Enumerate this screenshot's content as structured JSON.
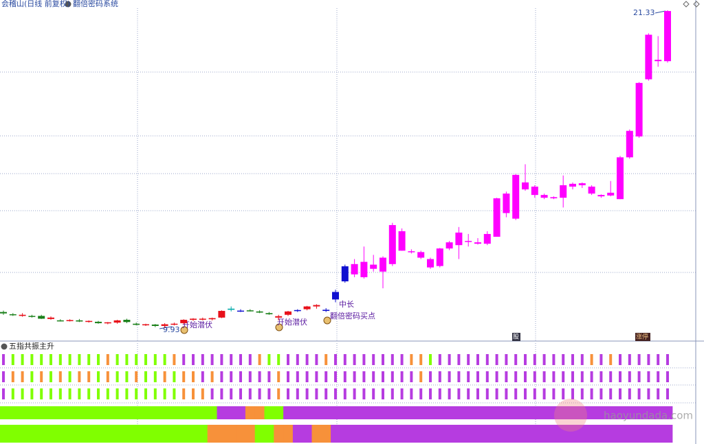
{
  "header": {
    "title": "会稽山(日线 前复权)",
    "indicator": "翻倍密码系统"
  },
  "chart_data": {
    "type": "candlestick",
    "ylim": [
      9.63,
      21.4
    ],
    "open": [
      10.5,
      10.42,
      10.4,
      10.36,
      10.36,
      10.25,
      10.2,
      10.2,
      10.2,
      10.16,
      10.15,
      10.1,
      10.12,
      10.22,
      10.08,
      10.04,
      10.05,
      10.0,
      10.06,
      10.1,
      10.22,
      10.26,
      10.24,
      10.3,
      10.58,
      10.55,
      10.56,
      10.52,
      10.46,
      10.3,
      10.4,
      10.54,
      10.6,
      10.7,
      10.58,
      10.95,
      11.6,
      11.85,
      11.75,
      12.05,
      11.95,
      12.22,
      13.4,
      12.68,
      12.65,
      12.4,
      12.15,
      12.78,
      12.9,
      13.05,
      13.0,
      12.95,
      13.2,
      14.05,
      13.85,
      15.15,
      15.0,
      14.7,
      14.62,
      14.6,
      15.0,
      15.05,
      15.0,
      14.7,
      14.68,
      14.55,
      16.05,
      16.8,
      18.85,
      19.55,
      19.5
    ],
    "high": [
      10.55,
      10.46,
      10.46,
      10.4,
      10.4,
      10.34,
      10.24,
      10.24,
      10.25,
      10.2,
      10.18,
      10.14,
      10.22,
      10.26,
      10.12,
      10.08,
      10.07,
      10.1,
      10.12,
      10.24,
      10.28,
      10.3,
      10.3,
      10.56,
      10.7,
      10.6,
      10.6,
      10.56,
      10.5,
      10.4,
      10.54,
      10.6,
      10.72,
      10.78,
      10.64,
      11.3,
      12.2,
      12.4,
      12.85,
      12.55,
      12.5,
      13.7,
      13.5,
      12.75,
      12.7,
      12.45,
      12.8,
      13.05,
      13.55,
      13.3,
      13.15,
      13.4,
      14.6,
      14.82,
      15.45,
      15.8,
      15.05,
      14.75,
      14.65,
      15.4,
      15.15,
      15.15,
      15.05,
      14.72,
      15.2,
      16.1,
      17.05,
      18.75,
      20.5,
      20.4,
      21.33
    ],
    "low": [
      10.4,
      10.36,
      10.33,
      10.3,
      10.25,
      10.22,
      10.16,
      10.16,
      10.14,
      10.12,
      10.08,
      10.06,
      10.08,
      10.1,
      10.02,
      10.0,
      9.96,
      9.93,
      10.02,
      10.06,
      10.18,
      10.2,
      10.2,
      10.28,
      10.52,
      10.5,
      10.52,
      10.46,
      10.4,
      10.2,
      10.36,
      10.5,
      10.56,
      10.62,
      10.5,
      10.85,
      11.55,
      11.75,
      11.7,
      11.95,
      11.35,
      12.15,
      12.7,
      12.6,
      12.4,
      12.05,
      12.1,
      12.72,
      12.4,
      12.85,
      12.92,
      12.9,
      13.2,
      13.9,
      13.8,
      14.85,
      14.6,
      14.55,
      14.55,
      14.25,
      14.9,
      14.95,
      14.7,
      14.6,
      14.65,
      14.55,
      16.0,
      16.75,
      18.8,
      19.3,
      19.45
    ],
    "close": [
      10.45,
      10.4,
      10.36,
      10.34,
      10.26,
      10.3,
      10.18,
      10.21,
      10.16,
      10.18,
      10.1,
      10.13,
      10.2,
      10.14,
      10.04,
      10.06,
      10.0,
      10.06,
      10.08,
      10.22,
      10.26,
      10.25,
      10.28,
      10.54,
      10.62,
      10.54,
      10.55,
      10.48,
      10.42,
      10.35,
      10.52,
      10.57,
      10.7,
      10.75,
      10.54,
      11.22,
      12.14,
      12.22,
      12.3,
      12.2,
      12.45,
      13.62,
      12.7,
      12.65,
      12.45,
      12.1,
      12.78,
      13.0,
      13.35,
      13.02,
      12.95,
      13.3,
      14.58,
      14.75,
      15.42,
      14.9,
      14.7,
      14.6,
      14.58,
      15.05,
      15.1,
      15.12,
      14.75,
      14.65,
      14.78,
      16.05,
      17.0,
      18.72,
      20.45,
      19.5,
      21.3
    ],
    "colors": [
      "#1a801a",
      "#1a801a",
      "#e8101a",
      "#1a801a",
      "#1a801a",
      "#e8101a",
      "#1a801a",
      "#e8101a",
      "#1a801a",
      "#e8101a",
      "#1a801a",
      "#e8101a",
      "#e8101a",
      "#1a801a",
      "#1a801a",
      "#e8101a",
      "#1a801a",
      "#e8101a",
      "#e8101a",
      "#e8101a",
      "#e8101a",
      "#e8101a",
      "#e8101a",
      "#e8101a",
      "#00aaaa",
      "#1010d0",
      "#1a801a",
      "#1a801a",
      "#1a801a",
      "#e8101a",
      "#e8101a",
      "#1010d0",
      "#e8101a",
      "#e8101a",
      "#1010d0",
      "#1010d0",
      "#1010d0",
      "#ff00ff",
      "#ff00ff",
      "#ff00ff",
      "#ff00ff",
      "#ff00ff",
      "#ff00ff",
      "#ff00ff",
      "#ff00ff",
      "#ff00ff",
      "#ff00ff",
      "#ff00ff",
      "#ff00ff",
      "#ff00ff",
      "#ff00ff",
      "#ff00ff",
      "#ff00ff",
      "#ff00ff",
      "#ff00ff",
      "#ff00ff",
      "#ff00ff",
      "#ff00ff",
      "#ff00ff",
      "#ff00ff",
      "#ff00ff",
      "#ff00ff",
      "#ff00ff",
      "#ff00ff",
      "#ff00ff",
      "#ff00ff",
      "#ff00ff",
      "#ff00ff",
      "#ff00ff",
      "#ff00ff",
      "#ff00ff"
    ],
    "annotations": [
      "9.93",
      "21.33",
      "开始潜伏",
      "开始潜伏",
      "中长",
      "翻倍密码买点"
    ],
    "tags": [
      "股",
      "涨停"
    ]
  },
  "panel": {
    "title": "五指共振主升",
    "bar_rows": [
      [
        "#b63ce0",
        "#80ff00",
        "#80ff00",
        "#80ff00",
        "#80ff00",
        "#80ff00",
        "#80ff00",
        "#80ff00",
        "#80ff00",
        "#80ff00",
        "#80ff00",
        "#f7913a",
        "#80ff00",
        "#80ff00",
        "#80ff00",
        "#80ff00",
        "#80ff00",
        "#80ff00",
        "#f7913a",
        "#b63ce0",
        "#b63ce0",
        "#b63ce0",
        "#b63ce0",
        "#b63ce0",
        "#b63ce0",
        "#b63ce0",
        "#b63ce0",
        "#f7913a",
        "#80ff00",
        "#80ff00",
        "#b63ce0",
        "#b63ce0",
        "#b63ce0",
        "#b63ce0",
        "#f7913a",
        "#b63ce0",
        "#b63ce0",
        "#b63ce0",
        "#b63ce0",
        "#b63ce0",
        "#b63ce0",
        "#b63ce0",
        "#b63ce0",
        "#f7913a",
        "#f7913a",
        "#80ff00",
        "#b63ce0",
        "#b63ce0",
        "#b63ce0",
        "#b63ce0",
        "#b63ce0",
        "#b63ce0",
        "#b63ce0",
        "#b63ce0",
        "#b63ce0",
        "#b63ce0",
        "#b63ce0",
        "#b63ce0",
        "#b63ce0",
        "#b63ce0",
        "#b63ce0",
        "#b63ce0",
        "#f7913a",
        "#b63ce0",
        "#f7913a",
        "#b63ce0",
        "#b63ce0",
        "#b63ce0",
        "#b63ce0",
        "#b63ce0",
        "#b63ce0"
      ],
      [
        "#b63ce0",
        "#f7913a",
        "#f7913a",
        "#80ff00",
        "#f7913a",
        "#80ff00",
        "#f7913a",
        "#80ff00",
        "#f7913a",
        "#f7913a",
        "#80ff00",
        "#f7913a",
        "#80ff00",
        "#80ff00",
        "#f7913a",
        "#80ff00",
        "#80ff00",
        "#f7913a",
        "#80ff00",
        "#f7913a",
        "#f7913a",
        "#b63ce0",
        "#f7913a",
        "#b63ce0",
        "#b63ce0",
        "#b63ce0",
        "#b63ce0",
        "#b63ce0",
        "#b63ce0",
        "#f7913a",
        "#b63ce0",
        "#b63ce0",
        "#b63ce0",
        "#b63ce0",
        "#b63ce0",
        "#b63ce0",
        "#b63ce0",
        "#b63ce0",
        "#b63ce0",
        "#b63ce0",
        "#b63ce0",
        "#b63ce0",
        "#b63ce0",
        "#b63ce0",
        "#f7913a",
        "#b63ce0",
        "#b63ce0",
        "#b63ce0",
        "#b63ce0",
        "#b63ce0",
        "#b63ce0",
        "#b63ce0",
        "#b63ce0",
        "#b63ce0",
        "#b63ce0",
        "#b63ce0",
        "#b63ce0",
        "#b63ce0",
        "#b63ce0",
        "#b63ce0",
        "#b63ce0",
        "#b63ce0",
        "#b63ce0",
        "#b63ce0",
        "#b63ce0",
        "#b63ce0",
        "#b63ce0",
        "#b63ce0",
        "#b63ce0",
        "#b63ce0",
        "#b63ce0"
      ],
      [
        "#b63ce0",
        "#80ff00",
        "#80ff00",
        "#80ff00",
        "#80ff00",
        "#80ff00",
        "#80ff00",
        "#80ff00",
        "#80ff00",
        "#80ff00",
        "#80ff00",
        "#80ff00",
        "#80ff00",
        "#80ff00",
        "#80ff00",
        "#80ff00",
        "#80ff00",
        "#80ff00",
        "#80ff00",
        "#f7913a",
        "#f7913a",
        "#f7913a",
        "#b63ce0",
        "#b63ce0",
        "#b63ce0",
        "#b63ce0",
        "#b63ce0",
        "#b63ce0",
        "#b63ce0",
        "#f7913a",
        "#b63ce0",
        "#b63ce0",
        "#b63ce0",
        "#b63ce0",
        "#b63ce0",
        "#b63ce0",
        "#b63ce0",
        "#b63ce0",
        "#b63ce0",
        "#b63ce0",
        "#b63ce0",
        "#b63ce0",
        "#b63ce0",
        "#b63ce0",
        "#b63ce0",
        "#b63ce0",
        "#b63ce0",
        "#b63ce0",
        "#b63ce0",
        "#b63ce0",
        "#b63ce0",
        "#b63ce0",
        "#b63ce0",
        "#b63ce0",
        "#b63ce0",
        "#b63ce0",
        "#b63ce0",
        "#b63ce0",
        "#b63ce0",
        "#b63ce0",
        "#b63ce0",
        "#b63ce0",
        "#b63ce0",
        "#b63ce0",
        "#b63ce0",
        "#b63ce0",
        "#b63ce0",
        "#b63ce0",
        "#b63ce0",
        "#b63ce0",
        "#b63ce0"
      ]
    ],
    "band_rows": [
      [
        "#80ff00",
        "#80ff00",
        "#80ff00",
        "#80ff00",
        "#80ff00",
        "#80ff00",
        "#80ff00",
        "#80ff00",
        "#80ff00",
        "#80ff00",
        "#80ff00",
        "#80ff00",
        "#80ff00",
        "#80ff00",
        "#80ff00",
        "#80ff00",
        "#80ff00",
        "#80ff00",
        "#80ff00",
        "#80ff00",
        "#80ff00",
        "#80ff00",
        "#80ff00",
        "#b63ce0",
        "#b63ce0",
        "#b63ce0",
        "#f7913a",
        "#f7913a",
        "#80ff00",
        "#80ff00",
        "#b63ce0",
        "#b63ce0",
        "#b63ce0",
        "#b63ce0",
        "#b63ce0",
        "#b63ce0",
        "#b63ce0",
        "#b63ce0",
        "#b63ce0",
        "#b63ce0",
        "#b63ce0",
        "#b63ce0",
        "#b63ce0",
        "#b63ce0",
        "#b63ce0",
        "#b63ce0",
        "#b63ce0",
        "#b63ce0",
        "#b63ce0",
        "#b63ce0",
        "#b63ce0",
        "#b63ce0",
        "#b63ce0",
        "#b63ce0",
        "#b63ce0",
        "#b63ce0",
        "#b63ce0",
        "#b63ce0",
        "#b63ce0",
        "#b63ce0",
        "#b63ce0",
        "#b63ce0",
        "#b63ce0",
        "#b63ce0",
        "#b63ce0",
        "#b63ce0",
        "#b63ce0",
        "#b63ce0",
        "#b63ce0",
        "#b63ce0",
        "#b63ce0"
      ],
      [
        "#80ff00",
        "#80ff00",
        "#80ff00",
        "#80ff00",
        "#80ff00",
        "#80ff00",
        "#80ff00",
        "#80ff00",
        "#80ff00",
        "#80ff00",
        "#80ff00",
        "#80ff00",
        "#80ff00",
        "#80ff00",
        "#80ff00",
        "#80ff00",
        "#80ff00",
        "#80ff00",
        "#80ff00",
        "#80ff00",
        "#80ff00",
        "#80ff00",
        "#f7913a",
        "#f7913a",
        "#f7913a",
        "#f7913a",
        "#f7913a",
        "#80ff00",
        "#80ff00",
        "#f7913a",
        "#f7913a",
        "#b63ce0",
        "#b63ce0",
        "#f7913a",
        "#f7913a",
        "#b63ce0",
        "#b63ce0",
        "#b63ce0",
        "#b63ce0",
        "#b63ce0",
        "#b63ce0",
        "#b63ce0",
        "#b63ce0",
        "#b63ce0",
        "#b63ce0",
        "#b63ce0",
        "#b63ce0",
        "#b63ce0",
        "#b63ce0",
        "#b63ce0",
        "#b63ce0",
        "#b63ce0",
        "#b63ce0",
        "#b63ce0",
        "#b63ce0",
        "#b63ce0",
        "#b63ce0",
        "#b63ce0",
        "#b63ce0",
        "#b63ce0",
        "#b63ce0",
        "#b63ce0",
        "#b63ce0",
        "#b63ce0",
        "#b63ce0",
        "#b63ce0",
        "#b63ce0",
        "#b63ce0",
        "#b63ce0",
        "#b63ce0",
        "#b63ce0"
      ]
    ]
  },
  "watermark": "haoyundada.com"
}
